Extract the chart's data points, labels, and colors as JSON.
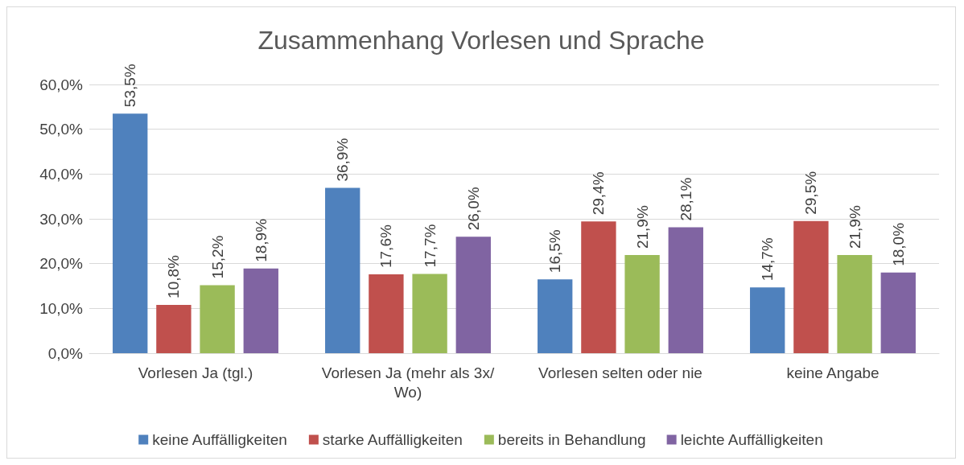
{
  "chart_data": {
    "type": "bar",
    "title": "Zusammenhang Vorlesen und Sprache",
    "categories": [
      "Vorlesen Ja (tgl.)",
      "Vorlesen Ja (mehr als 3x/Wo)",
      "Vorlesen selten oder nie",
      "keine Angabe"
    ],
    "series": [
      {
        "name": "keine Auffälligkeiten",
        "color": "#4f81bd",
        "values": [
          53.5,
          36.9,
          16.5,
          14.7
        ],
        "value_labels": [
          "53,5%",
          "36,9%",
          "16,5%",
          "14,7%"
        ]
      },
      {
        "name": "starke Auffälligkeiten",
        "color": "#c0504d",
        "values": [
          10.8,
          17.6,
          29.4,
          29.5
        ],
        "value_labels": [
          "10,8%",
          "17,6%",
          "29,4%",
          "29,5%"
        ]
      },
      {
        "name": "bereits in Behandlung",
        "color": "#9bbb59",
        "values": [
          15.2,
          17.7,
          21.9,
          21.9
        ],
        "value_labels": [
          "15,2%",
          "17,7%",
          "21,9%",
          "21,9%"
        ]
      },
      {
        "name": "leichte Auffälligkeiten",
        "color": "#8064a2",
        "values": [
          18.9,
          26.0,
          28.1,
          18.0
        ],
        "value_labels": [
          "18,9%",
          "26,0%",
          "28,1%",
          "18,0%"
        ]
      }
    ],
    "ylim": [
      0,
      60
    ],
    "yticks": [
      {
        "value": 0,
        "label": "0,0%"
      },
      {
        "value": 10,
        "label": "10,0%"
      },
      {
        "value": 20,
        "label": "20,0%"
      },
      {
        "value": 30,
        "label": "30,0%"
      },
      {
        "value": 40,
        "label": "40,0%"
      },
      {
        "value": 50,
        "label": "50,0%"
      },
      {
        "value": 60,
        "label": "60,0%"
      }
    ],
    "grid": "y",
    "legend": "bottom"
  }
}
